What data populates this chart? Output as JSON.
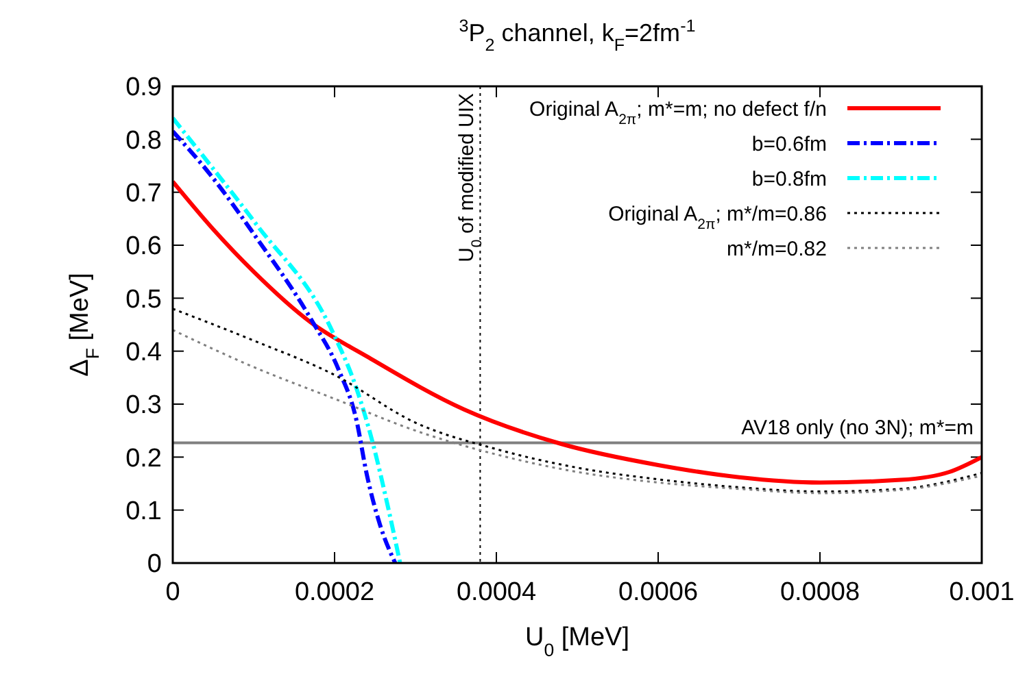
{
  "chart_data": {
    "type": "line",
    "title": "$^{3}$P$_{2}$ channel, k$_{F}$=2fm$^{-1}$",
    "xlabel": "U$_{0}$ [MeV]",
    "ylabel": "Δ$_{F}$ [MeV]",
    "xlim": [
      0,
      0.001
    ],
    "xticks": [
      0,
      0.0002,
      0.0004,
      0.0006,
      0.0008,
      0.001
    ],
    "ylim": [
      0,
      0.9
    ],
    "yticks": [
      0,
      0.1,
      0.2,
      0.3,
      0.4,
      0.5,
      0.6,
      0.7,
      0.8,
      0.9
    ],
    "grid": false,
    "legend": "top right",
    "marker": "none",
    "series": [
      {
        "name": "Original A$_{2π}$; m*=m; no defect f/n",
        "color": "#ff0000",
        "line_style": "solid",
        "x": [
          0,
          5e-05,
          0.0001,
          0.00017,
          0.00024,
          0.00036,
          0.00048,
          0.0006,
          0.0007,
          0.0008,
          0.0009,
          0.00096,
          0.001
        ],
        "values": [
          0.72,
          0.63,
          0.55,
          0.455,
          0.39,
          0.29,
          0.225,
          0.185,
          0.162,
          0.152,
          0.157,
          0.172,
          0.2
        ]
      },
      {
        "name": "b=0.6fm",
        "color": "#0000ff",
        "line_style": "dashed",
        "x": [
          0,
          4.6e-05,
          0.000103,
          0.000171,
          0.000205,
          0.000227,
          0.00024,
          0.000256,
          0.000275
        ],
        "values": [
          0.815,
          0.734,
          0.615,
          0.46,
          0.365,
          0.27,
          0.166,
          0.073,
          0
        ]
      },
      {
        "name": "b=0.8fm",
        "color": "#00ffff",
        "line_style": "dashed",
        "x": [
          0,
          4.6e-05,
          0.000103,
          0.000198,
          0.000227,
          0.000247,
          0.000266,
          0.000281
        ],
        "values": [
          0.84,
          0.752,
          0.64,
          0.435,
          0.33,
          0.228,
          0.106,
          0
        ]
      },
      {
        "name": "Original A$_{2π}$; m*/m=0.86",
        "color": "#000000",
        "line_style": "dotted",
        "x": [
          0,
          0.0001,
          0.0002,
          0.0003,
          0.0004,
          0.0005,
          0.0006,
          0.0007,
          0.0008,
          0.0009,
          0.001
        ],
        "values": [
          0.48,
          0.42,
          0.355,
          0.265,
          0.215,
          0.18,
          0.158,
          0.143,
          0.135,
          0.14,
          0.17
        ]
      },
      {
        "name": "m*/m=0.82",
        "color": "#808080",
        "line_style": "dotted",
        "x": [
          0,
          0.0001,
          0.0002,
          0.0003,
          0.0004,
          0.0005,
          0.0006,
          0.0007,
          0.0008,
          0.0009,
          0.001
        ],
        "values": [
          0.44,
          0.37,
          0.31,
          0.25,
          0.205,
          0.172,
          0.152,
          0.14,
          0.132,
          0.138,
          0.165
        ]
      }
    ],
    "ref_lines": [
      {
        "axis": "y",
        "value": 0.227,
        "label": "AV18 only (no 3N); m*=m",
        "color": "#808080",
        "line_style": "solid"
      },
      {
        "axis": "x",
        "value": 0.00038,
        "label": "U$_{0}$ of modified UIX",
        "color": "#000000",
        "line_style": "dotted"
      }
    ]
  }
}
